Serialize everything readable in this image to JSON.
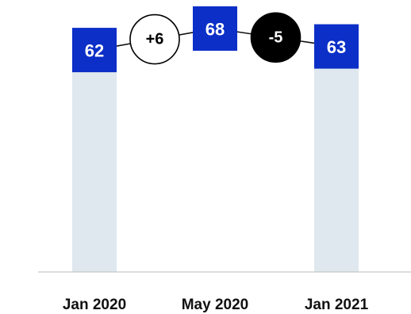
{
  "chart_data": {
    "type": "bar",
    "categories": [
      "Jan 2020",
      "May 2020",
      "Jan 2021"
    ],
    "values": [
      62,
      68,
      63
    ],
    "ylim": [
      0,
      68
    ],
    "grid": false,
    "legend": "none",
    "bars_visible": [
      true,
      false,
      true
    ],
    "deltas": [
      {
        "label": "+6",
        "style": "outline"
      },
      {
        "label": "-5",
        "style": "filled"
      }
    ],
    "colors": {
      "bar_fill": "#dfe8ee",
      "value_box": "#0b2fc7",
      "value_text": "#ffffff",
      "connector": "#111111",
      "delta_outline_fill": "#ffffff",
      "delta_filled_fill": "#000000",
      "axis": "#bbbbbb",
      "tick_text": "#111111"
    }
  }
}
